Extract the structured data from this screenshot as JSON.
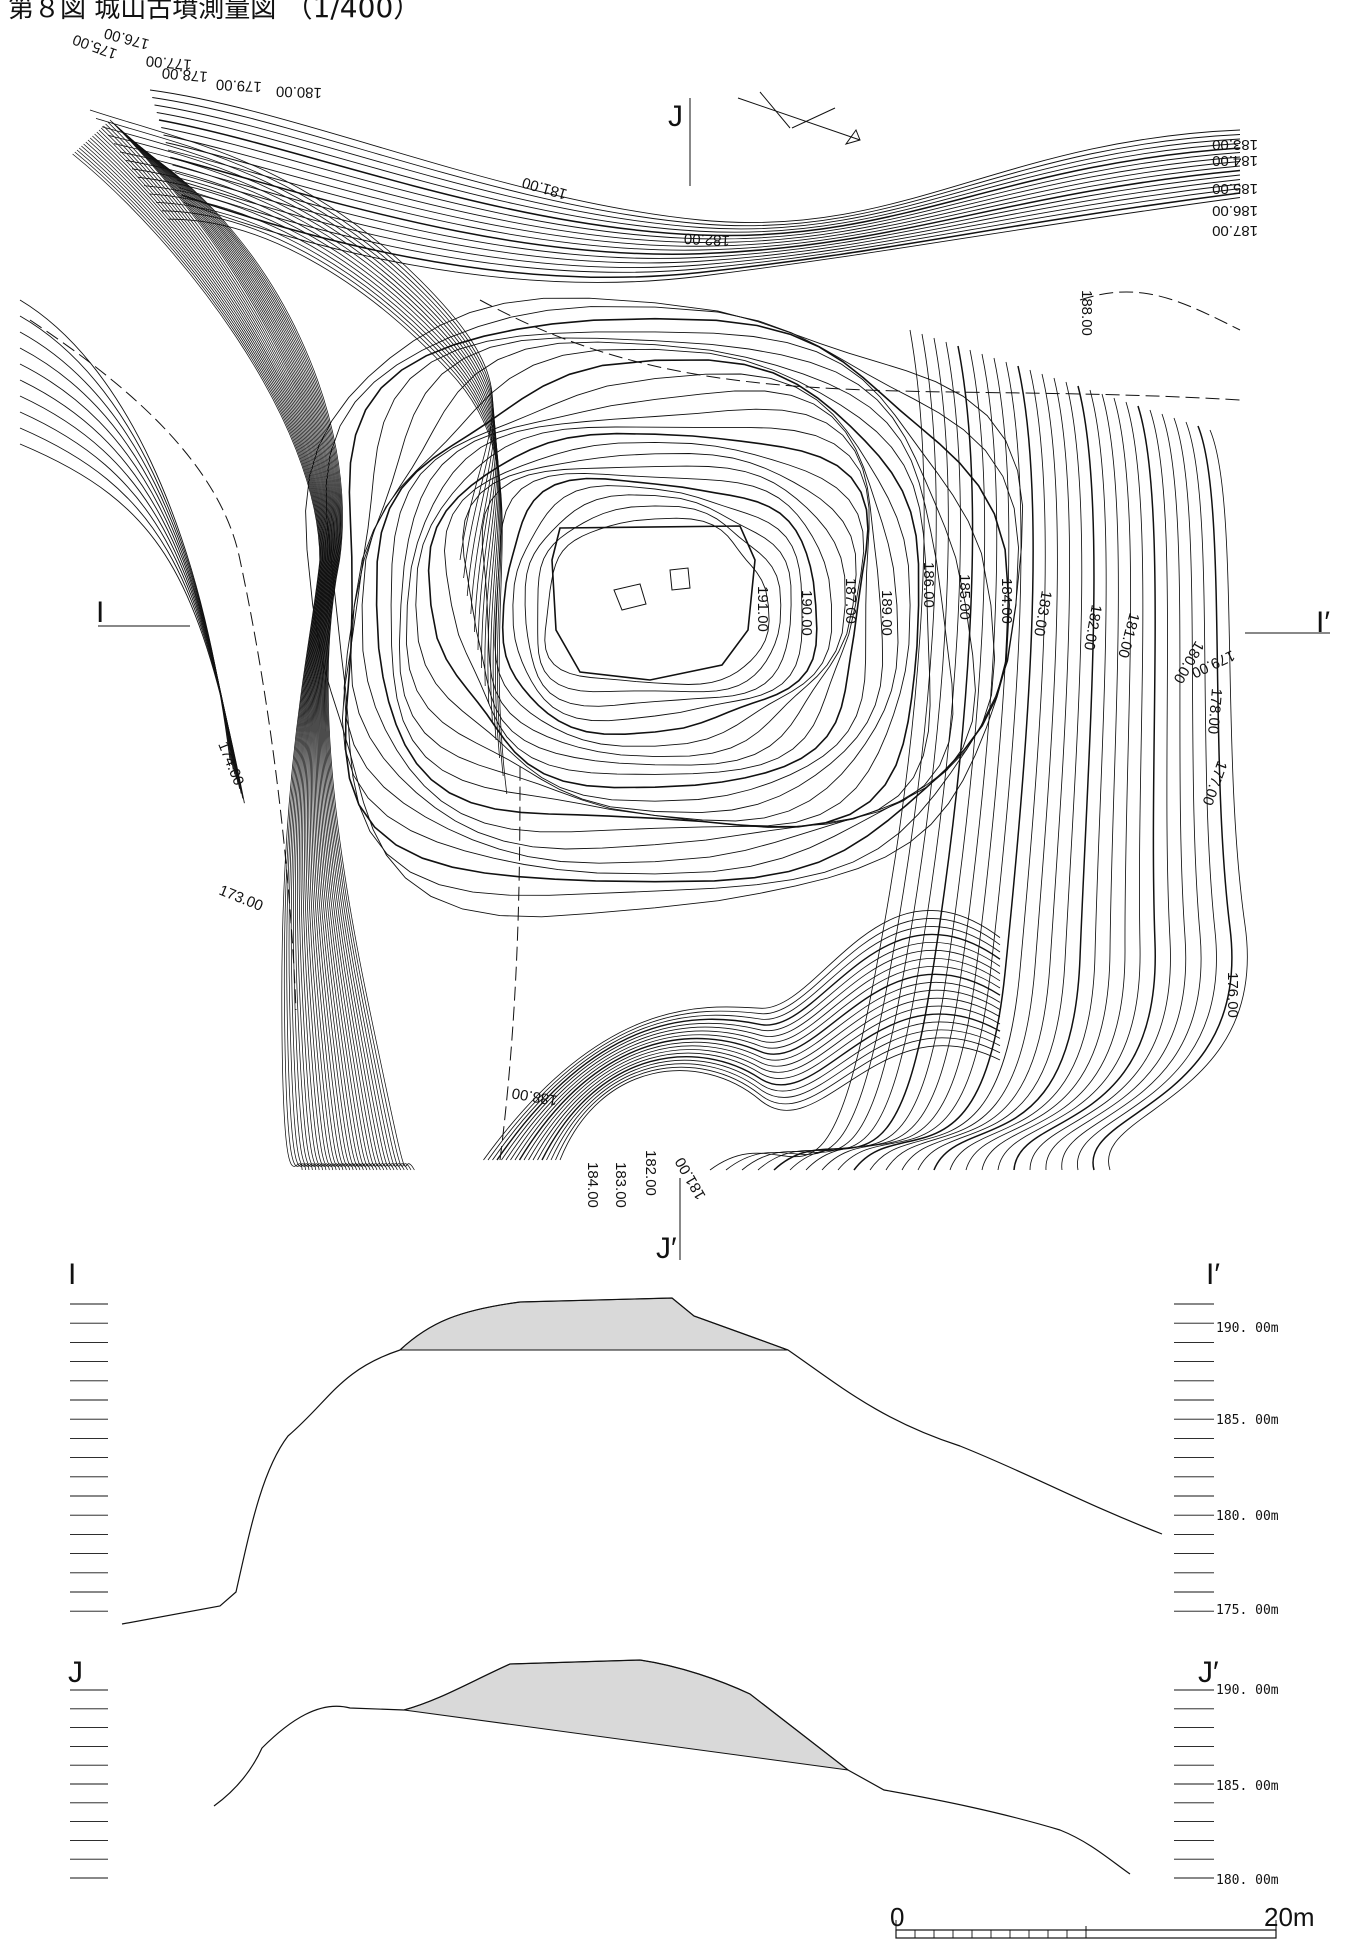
{
  "title": {
    "prefix": "第８図",
    "name": "城山古墳測量図",
    "scale": "（1/400）"
  },
  "map": {
    "section_marks": {
      "i": "I",
      "i_prime": "I′",
      "j": "J",
      "j_prime": "J′"
    },
    "contour_labels": [
      "175.00",
      "176.00",
      "177.00",
      "178.00",
      "179.00",
      "180.00",
      "181.00",
      "182.00",
      "183.00",
      "184.00",
      "185.00",
      "186.00",
      "187.00",
      "188.00",
      "189.00",
      "190.00",
      "191.00",
      "174.00",
      "173.00",
      "176.00",
      "177.00",
      "178.00",
      "179.00",
      "180.00",
      "181.00",
      "182.00",
      "183.00",
      "184.00",
      "185.00",
      "186.00",
      "187.00",
      "188.00",
      "184.00",
      "183.00",
      "182.00",
      "181.00",
      "180.00"
    ]
  },
  "section_i": {
    "left_label": "I",
    "right_label": "I′",
    "elevations": [
      "190. 00m",
      "185. 00m",
      "180. 00m",
      "175. 00m"
    ]
  },
  "section_j": {
    "left_label": "J",
    "right_label": "J′",
    "elevations": [
      "190. 00m",
      "185. 00m",
      "180. 00m"
    ]
  },
  "scale_bar": {
    "start": "0",
    "end": "20m"
  },
  "colors": {
    "line": "#111111",
    "fill": "#d9d9d9"
  }
}
